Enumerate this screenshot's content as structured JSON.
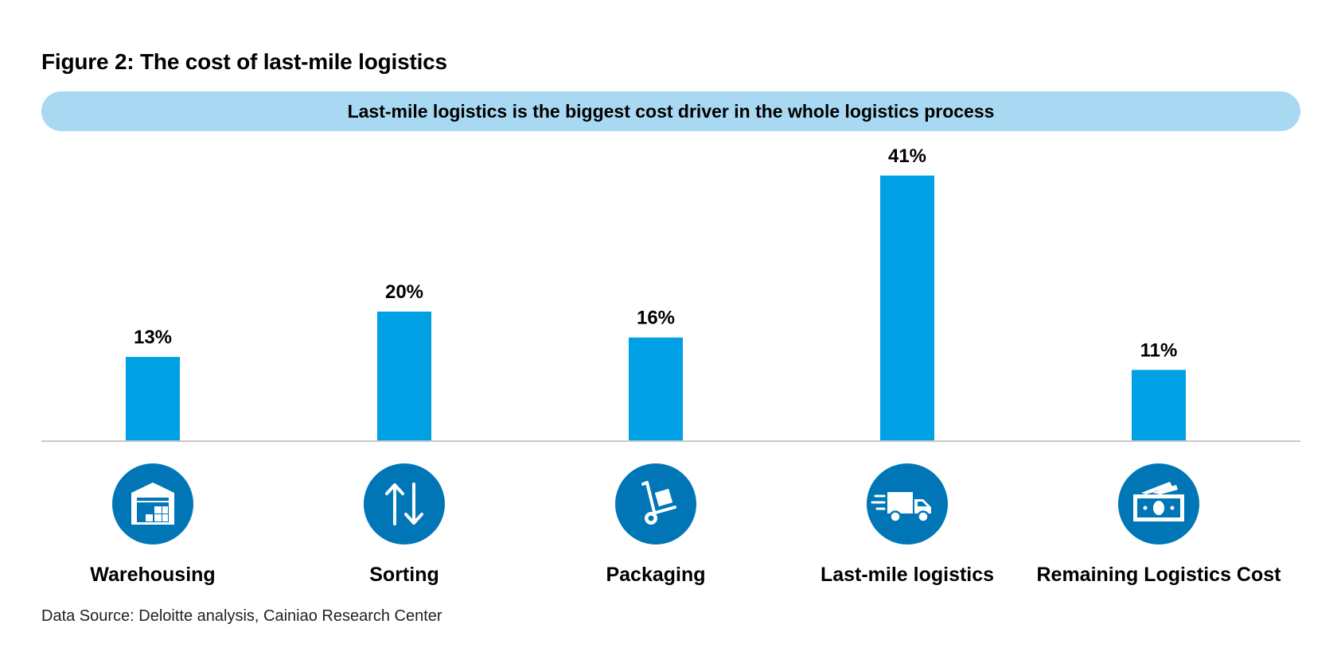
{
  "figure": {
    "title": "Figure 2: The cost of last-mile logistics",
    "banner": "Last-mile logistics is the biggest cost driver in the whole logistics process",
    "source": "Data Source: Deloitte analysis, Cainiao Research Center"
  },
  "chart_data": {
    "type": "bar",
    "categories": [
      "Warehousing",
      "Sorting",
      "Packaging",
      "Last-mile logistics",
      "Remaining Logistics Cost"
    ],
    "values": [
      13,
      20,
      16,
      41,
      11
    ],
    "value_labels": [
      "13%",
      "20%",
      "16%",
      "41%",
      "11%"
    ],
    "icons": [
      "warehouse-icon",
      "sorting-arrows-icon",
      "hand-truck-icon",
      "delivery-truck-icon",
      "cash-icon"
    ],
    "unit": "%",
    "ylim": [
      0,
      41
    ],
    "grid": false,
    "legend": "none"
  },
  "colors": {
    "bar": "#00a1e4",
    "icon_circle": "#0076b6",
    "banner": "#a8d8f2",
    "baseline": "#c8c8c8"
  }
}
